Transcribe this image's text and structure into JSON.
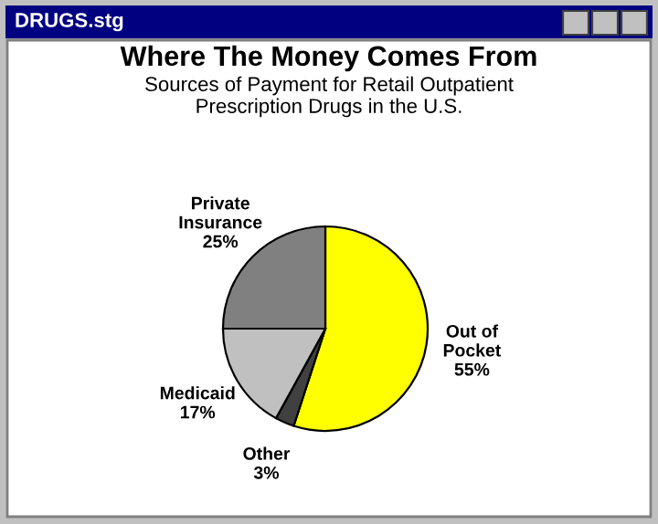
{
  "chart_data": {
    "type": "pie",
    "title": "Where The Money Comes From",
    "subtitle": "Sources of Payment for Retail Outpatient\nPrescription Drugs in the U.S.",
    "annotations": [
      "DRUGS.stg"
    ],
    "categories": [
      "Out of\nPocket",
      "Other",
      "Medicaid",
      "Private\nInsurance"
    ],
    "values": [
      55,
      3,
      17,
      25
    ],
    "value_labels": [
      "55%",
      "3%",
      "17%",
      "25%"
    ],
    "colors": [
      "#ffff00",
      "#404040",
      "#c0c0c0",
      "#808080"
    ]
  }
}
